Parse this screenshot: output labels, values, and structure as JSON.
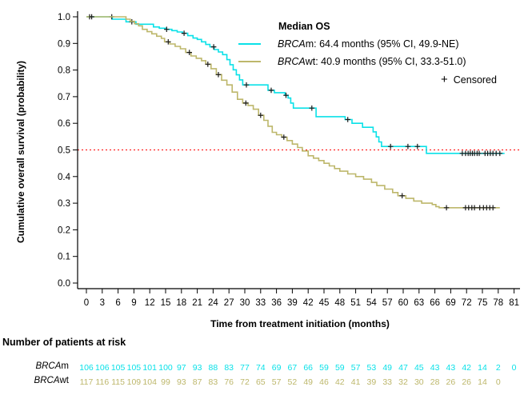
{
  "axes": {
    "x_label": "Time from treatment initiation (months)",
    "y_label": "Cumulative overall survival (probability)",
    "x_ticks": [
      0,
      3,
      6,
      9,
      12,
      15,
      18,
      21,
      24,
      27,
      30,
      33,
      36,
      39,
      42,
      45,
      48,
      51,
      54,
      57,
      60,
      63,
      66,
      69,
      72,
      75,
      78,
      81
    ],
    "y_ticks": [
      "0.0",
      "0.1",
      "0.2",
      "0.3",
      "0.4",
      "0.5",
      "0.6",
      "0.7",
      "0.8",
      "0.9",
      "1.0"
    ]
  },
  "legend": {
    "title": "Median OS",
    "entries": [
      {
        "gene": "BRCA",
        "suffix": "m",
        "stat": ": 64.4 months (95% CI, 49.9-NE)",
        "color": "#0ae1e8"
      },
      {
        "gene": "BRCA",
        "suffix": "wt",
        "stat": ": 40.9 months (95% CI, 33.3-51.0)",
        "color": "#bdb76b"
      }
    ],
    "censored_marker": "+",
    "censored_label": "Censored"
  },
  "risk_table": {
    "title": "Number of patients at risk",
    "rows": [
      {
        "id": "brcam",
        "gene": "BRCA",
        "suffix": "m",
        "color": "#0ae1e8",
        "values": [
          106,
          106,
          105,
          105,
          101,
          100,
          97,
          93,
          88,
          83,
          77,
          74,
          69,
          67,
          66,
          59,
          59,
          57,
          53,
          49,
          47,
          45,
          43,
          43,
          42,
          14,
          2,
          0
        ]
      },
      {
        "id": "brcawt",
        "gene": "BRCA",
        "suffix": "wt",
        "color": "#bdb76b",
        "values": [
          117,
          116,
          115,
          109,
          104,
          99,
          93,
          87,
          83,
          76,
          72,
          65,
          57,
          52,
          49,
          46,
          42,
          41,
          39,
          33,
          32,
          30,
          28,
          26,
          26,
          14,
          0
        ]
      }
    ]
  },
  "chart_data": {
    "type": "line",
    "subtype": "kaplan-meier-step",
    "title": "",
    "xlabel": "Time from treatment initiation (months)",
    "ylabel": "Cumulative overall survival (probability)",
    "xlim": [
      0,
      81
    ],
    "ylim": [
      0.0,
      1.0
    ],
    "grid": false,
    "legend_position": "top-right-inside",
    "reference_line": {
      "y": 0.5,
      "color": "#ff0000",
      "style": "dotted"
    },
    "series": [
      {
        "id": "brcam",
        "name": "BRCAm",
        "median": "64.4 months (95% CI, 49.9-NE)",
        "color": "#0ae1e8",
        "end_month": 79.2,
        "steps": [
          [
            4.9,
            0.991
          ],
          [
            7.5,
            0.981
          ],
          [
            9.4,
            0.972
          ],
          [
            12.7,
            0.962
          ],
          [
            13.8,
            0.957
          ],
          [
            15.0,
            0.953
          ],
          [
            16.2,
            0.948
          ],
          [
            17.2,
            0.943
          ],
          [
            18.2,
            0.938
          ],
          [
            19.2,
            0.929
          ],
          [
            20.2,
            0.92
          ],
          [
            21.0,
            0.915
          ],
          [
            21.8,
            0.906
          ],
          [
            22.6,
            0.896
          ],
          [
            23.4,
            0.887
          ],
          [
            24.2,
            0.877
          ],
          [
            25.0,
            0.868
          ],
          [
            25.8,
            0.858
          ],
          [
            26.6,
            0.839
          ],
          [
            27.2,
            0.82
          ],
          [
            27.8,
            0.801
          ],
          [
            28.4,
            0.782
          ],
          [
            29.0,
            0.763
          ],
          [
            29.6,
            0.744
          ],
          [
            34.4,
            0.724
          ],
          [
            35.6,
            0.715
          ],
          [
            37.6,
            0.705
          ],
          [
            38.2,
            0.695
          ],
          [
            38.7,
            0.676
          ],
          [
            39.2,
            0.657
          ],
          [
            43.5,
            0.625
          ],
          [
            49.0,
            0.614
          ],
          [
            50.3,
            0.6
          ],
          [
            52.3,
            0.585
          ],
          [
            54.3,
            0.568
          ],
          [
            54.9,
            0.549
          ],
          [
            55.4,
            0.53
          ],
          [
            55.9,
            0.513
          ],
          [
            64.4,
            0.487
          ]
        ],
        "censor_months": [
          0.6,
          4.8,
          8.6,
          15.2,
          18.5,
          24.1,
          30.3,
          35.0,
          37.8,
          42.7,
          49.5,
          57.6,
          60.9,
          62.7,
          71.2,
          71.8,
          72.3,
          72.7,
          73.1,
          73.5,
          74.0,
          74.4,
          75.5,
          76.0,
          76.5,
          77.0,
          77.6,
          78.3
        ]
      },
      {
        "id": "brcawt",
        "name": "BRCAwt",
        "median": "40.9 months (95% CI, 33.3-51.0)",
        "color": "#bdb76b",
        "end_month": 78.3,
        "steps": [
          [
            7.5,
            0.991
          ],
          [
            8.3,
            0.983
          ],
          [
            9.1,
            0.974
          ],
          [
            9.9,
            0.966
          ],
          [
            10.6,
            0.953
          ],
          [
            11.5,
            0.944
          ],
          [
            12.4,
            0.936
          ],
          [
            13.3,
            0.927
          ],
          [
            14.2,
            0.919
          ],
          [
            14.8,
            0.906
          ],
          [
            15.8,
            0.898
          ],
          [
            16.8,
            0.889
          ],
          [
            17.8,
            0.88
          ],
          [
            18.8,
            0.866
          ],
          [
            19.8,
            0.853
          ],
          [
            20.8,
            0.844
          ],
          [
            21.8,
            0.835
          ],
          [
            22.6,
            0.822
          ],
          [
            23.6,
            0.805
          ],
          [
            24.6,
            0.783
          ],
          [
            25.6,
            0.762
          ],
          [
            26.6,
            0.744
          ],
          [
            27.6,
            0.717
          ],
          [
            28.6,
            0.69
          ],
          [
            29.6,
            0.676
          ],
          [
            30.6,
            0.667
          ],
          [
            31.6,
            0.653
          ],
          [
            32.6,
            0.63
          ],
          [
            33.6,
            0.611
          ],
          [
            34.4,
            0.589
          ],
          [
            35.2,
            0.566
          ],
          [
            36.0,
            0.557
          ],
          [
            37.0,
            0.548
          ],
          [
            38.0,
            0.535
          ],
          [
            39.0,
            0.522
          ],
          [
            40.0,
            0.509
          ],
          [
            40.9,
            0.496
          ],
          [
            42.0,
            0.478
          ],
          [
            43.0,
            0.469
          ],
          [
            44.0,
            0.46
          ],
          [
            45.0,
            0.45
          ],
          [
            46.0,
            0.44
          ],
          [
            47.0,
            0.43
          ],
          [
            48.0,
            0.42
          ],
          [
            49.5,
            0.41
          ],
          [
            51.0,
            0.4
          ],
          [
            52.5,
            0.39
          ],
          [
            54.0,
            0.378
          ],
          [
            55.0,
            0.366
          ],
          [
            56.5,
            0.353
          ],
          [
            58.0,
            0.34
          ],
          [
            59.0,
            0.328
          ],
          [
            60.5,
            0.318
          ],
          [
            62.0,
            0.308
          ],
          [
            63.5,
            0.3
          ],
          [
            65.5,
            0.295
          ],
          [
            66.2,
            0.287
          ],
          [
            66.8,
            0.283
          ]
        ],
        "censor_months": [
          1.0,
          15.5,
          19.5,
          23.0,
          25.0,
          30.2,
          33.0,
          37.4,
          59.8,
          68.2,
          71.8,
          72.4,
          73.0,
          73.5,
          74.5,
          75.2,
          75.8,
          76.4,
          77.0
        ]
      }
    ]
  }
}
